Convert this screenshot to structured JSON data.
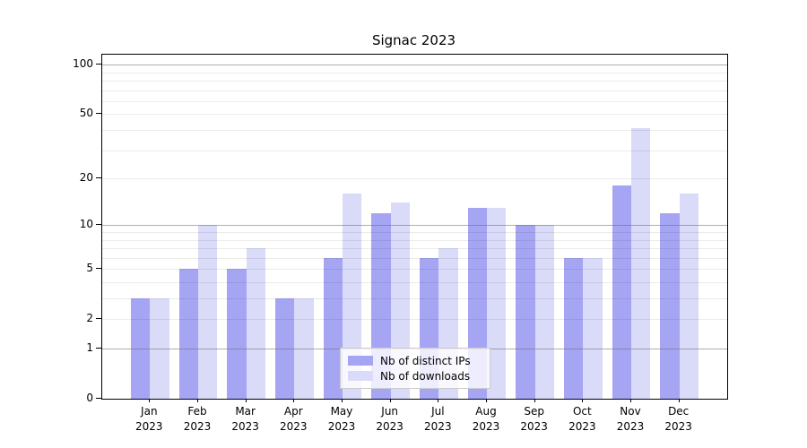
{
  "chart_data": {
    "type": "bar",
    "title": "Signac 2023",
    "months": [
      "Jan",
      "Feb",
      "Mar",
      "Apr",
      "May",
      "Jun",
      "Jul",
      "Aug",
      "Sep",
      "Oct",
      "Nov",
      "Dec"
    ],
    "year": "2023",
    "series": [
      {
        "name": "Nb of distinct IPs",
        "color": "#a5a5f4",
        "values": [
          3,
          5,
          5,
          3,
          6,
          12,
          6,
          13,
          10,
          6,
          18,
          12
        ]
      },
      {
        "name": "Nb of downloads",
        "color": "#dadaf9",
        "values": [
          3,
          10,
          7,
          3,
          16,
          14,
          7,
          13,
          10,
          6,
          41,
          16
        ]
      }
    ],
    "y_scale": "log1p",
    "y_tick_values": [
      0,
      1,
      2,
      5,
      10,
      20,
      50,
      100
    ],
    "y_tick_labels": [
      "0",
      "1",
      "2",
      "5",
      "10",
      "20",
      "50",
      "100"
    ],
    "major_gridlines": [
      1,
      10,
      100
    ],
    "minor_gridlines": [
      2,
      3,
      4,
      5,
      6,
      7,
      8,
      9,
      20,
      30,
      40,
      50,
      60,
      70,
      80,
      90
    ],
    "ylim": [
      0,
      115
    ],
    "grid": "horizontal",
    "legend_position": "lower center",
    "axis_color": "#000000",
    "background_color": "#ffffff"
  }
}
